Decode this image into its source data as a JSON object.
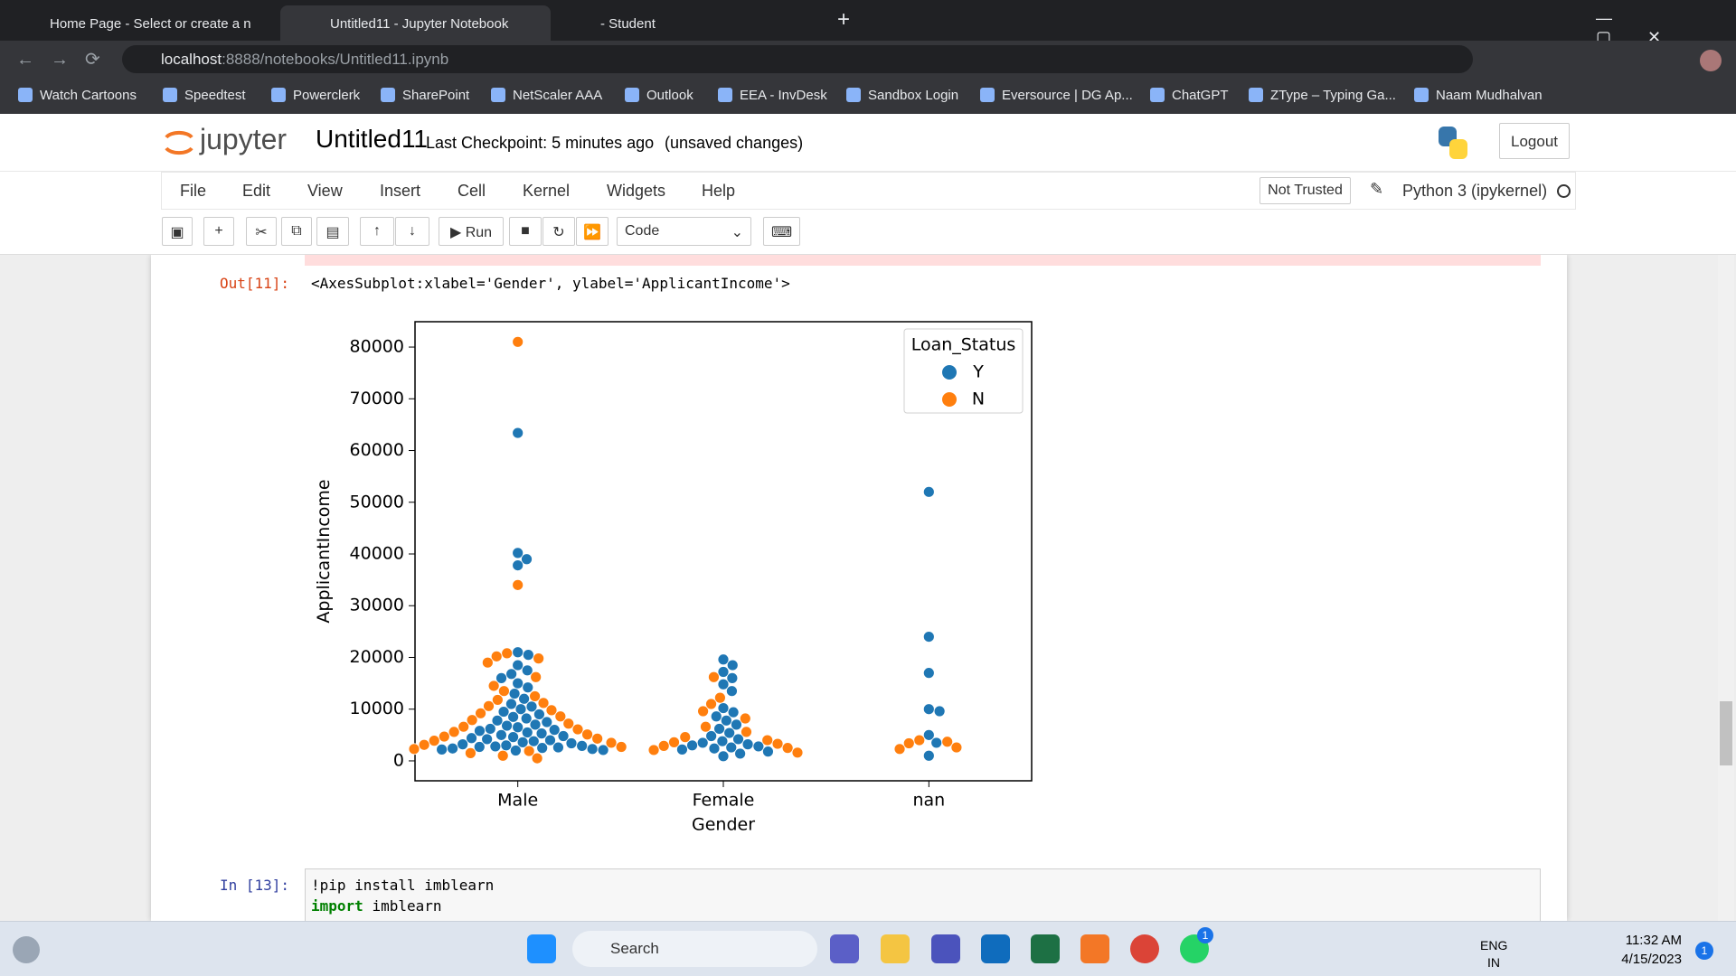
{
  "browser": {
    "tabs": [
      "Home Page - Select or create a n",
      "Untitled11 - Jupyter Notebook",
      "- Student"
    ],
    "url_host": "localhost",
    "url_path": ":8888/notebooks/Untitled11.ipynb",
    "bookmarks": [
      "Watch Cartoons",
      "Speedtest",
      "Powerclerk",
      "SharePoint",
      "NetScaler AAA",
      "Outlook",
      "EEA - InvDesk",
      "Sandbox Login",
      "Eversource | DG Ap...",
      "ChatGPT",
      "ZType – Typing Ga...",
      "Naam Mudhalvan"
    ]
  },
  "jupyter": {
    "logo": "jupyter",
    "notebook_name": "Untitled11",
    "checkpoint": "Last Checkpoint: 5 minutes ago",
    "status": "(unsaved changes)",
    "logout": "Logout",
    "menu": [
      "File",
      "Edit",
      "View",
      "Insert",
      "Cell",
      "Kernel",
      "Widgets",
      "Help"
    ],
    "trusted": "Not Trusted",
    "kernel": "Python 3 (ipykernel)",
    "run": "Run",
    "cell_type": "Code"
  },
  "cells": {
    "out_prompt": "Out[11]:",
    "out_text": "<AxesSubplot:xlabel='Gender', ylabel='ApplicantIncome'>",
    "in_prompt": "In [13]:",
    "code_line1": "!pip install imblearn",
    "code_keyword": "import",
    "code_line2": "imblearn"
  },
  "chart_data": {
    "type": "swarm",
    "xlabel": "Gender",
    "ylabel": "ApplicantIncome",
    "categories": [
      "Male",
      "Female",
      "nan"
    ],
    "legend_title": "Loan_Status",
    "legend_position": "upper right",
    "ylim": [
      -3850,
      84900
    ],
    "yticks": [
      0,
      10000,
      20000,
      30000,
      40000,
      50000,
      60000,
      70000,
      80000
    ],
    "series": [
      {
        "name": "Y",
        "color": "#1f77b4",
        "values": [
          [
            63400,
            40200,
            39000,
            37800,
            21000,
            20500,
            18500,
            17500,
            16800,
            16000,
            15000,
            14200,
            13000,
            12000,
            11000,
            10500,
            10000,
            9500,
            9000,
            8500,
            8200,
            7800,
            7500,
            7000,
            6800,
            6500,
            6200,
            6000,
            5800,
            5500,
            5300,
            5000,
            4800,
            4600,
            4400,
            4200,
            4000,
            3800,
            3600,
            3400,
            3200,
            3000,
            2900,
            2800,
            2700,
            2600,
            2500,
            2400,
            2300,
            2200,
            2100,
            2000
          ],
          [
            19600,
            18500,
            17200,
            16000,
            14800,
            13500,
            10200,
            9400,
            8600,
            7800,
            7000,
            6200,
            5400,
            4800,
            4200,
            3800,
            3500,
            3200,
            3000,
            2800,
            2600,
            2400,
            2200,
            1800,
            1400,
            900
          ],
          [
            52000,
            24000,
            17000,
            10000,
            9600,
            5000,
            3500,
            1000
          ]
        ]
      },
      {
        "name": "N",
        "color": "#ff7f0e",
        "values": [
          [
            81000,
            34000,
            20800,
            20200,
            19800,
            19000,
            16200,
            14500,
            13500,
            12500,
            11800,
            11200,
            10600,
            9800,
            9200,
            8600,
            7900,
            7200,
            6600,
            6100,
            5600,
            5100,
            4700,
            4300,
            3900,
            3500,
            3100,
            2700,
            2300,
            1900,
            1500,
            1000,
            500
          ],
          [
            16200,
            12200,
            11000,
            9600,
            8200,
            6600,
            5600,
            4600,
            4000,
            3600,
            3300,
            2900,
            2500,
            2100,
            1600
          ],
          [
            4000,
            3700,
            3400,
            2600,
            2300
          ]
        ]
      }
    ]
  },
  "taskbar": {
    "search": "Search",
    "lang": "ENG",
    "region": "IN",
    "time": "11:32 AM",
    "date": "4/15/2023",
    "chat_badge": "1",
    "notif_badge": "1"
  }
}
